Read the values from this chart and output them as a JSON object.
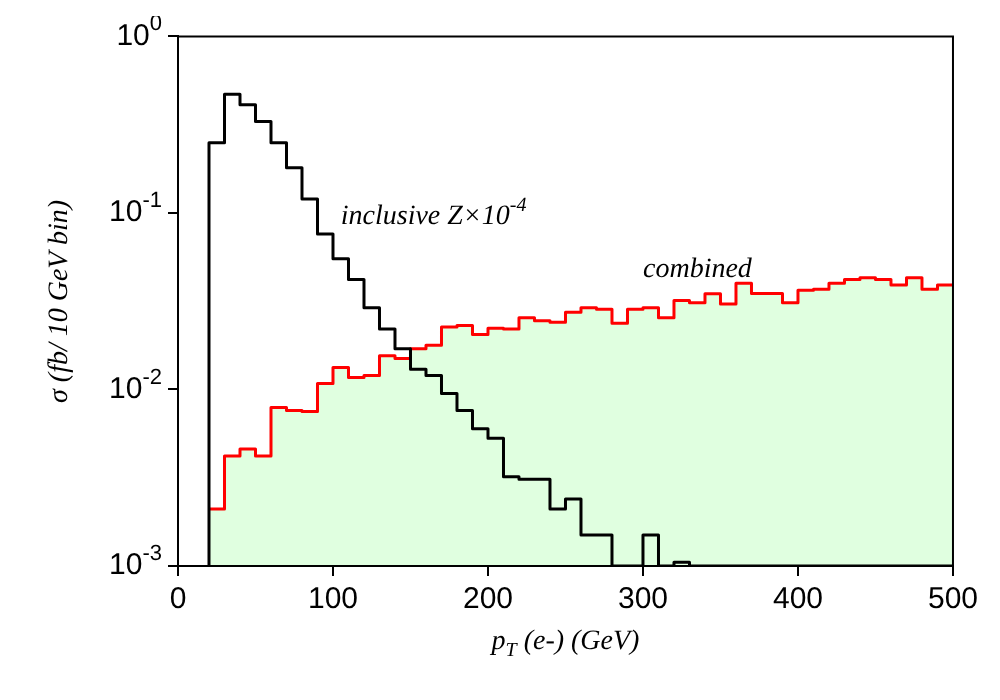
{
  "chart_data": {
    "type": "histogram",
    "xlabel": "p$_{T}$ (e-) (GeV)",
    "ylabel": "σ (fb/ 10 GeV bin)",
    "bins": [
      20,
      30,
      40,
      50,
      60,
      70,
      80,
      90,
      100,
      110,
      120,
      130,
      140,
      150,
      160,
      170,
      180,
      190,
      200,
      210,
      220,
      230,
      240,
      250,
      260,
      270,
      280,
      290,
      300,
      310,
      320,
      330,
      340,
      350,
      360,
      370,
      380,
      390,
      400,
      410,
      420,
      430,
      440,
      450,
      460,
      470,
      480,
      490,
      500
    ],
    "series": [
      {
        "name": "combined",
        "type": "area",
        "color": "#ff0000",
        "x": [
          20,
          30,
          30,
          40,
          40,
          50,
          50,
          60,
          60,
          70,
          70,
          80,
          80,
          90,
          90,
          100,
          100,
          110,
          110,
          120,
          120,
          130,
          130,
          140,
          140,
          150,
          150,
          160,
          160,
          170,
          170,
          180,
          180,
          190,
          190,
          200,
          200,
          210,
          210,
          220,
          220,
          230,
          230,
          240,
          240,
          250,
          250,
          260,
          260,
          270,
          270,
          280,
          280,
          290,
          290,
          300,
          300,
          310,
          310,
          320,
          320,
          330,
          330,
          340,
          340,
          350,
          350,
          360,
          360,
          370,
          370,
          380,
          380,
          390,
          390,
          400,
          400,
          410,
          410,
          420,
          420,
          430,
          430,
          440,
          440,
          450,
          450,
          460,
          460,
          470,
          470,
          480,
          480,
          490,
          490,
          500
        ],
        "values": [
          0.0021,
          0.0021,
          0.0042,
          0.0042,
          0.0046,
          0.0046,
          0.0042,
          0.0042,
          0.0079,
          0.0079,
          0.0076,
          0.0076,
          0.0075,
          0.0075,
          0.0108,
          0.0108,
          0.0133,
          0.0133,
          0.0117,
          0.0117,
          0.012,
          0.012,
          0.0155,
          0.0155,
          0.015,
          0.015,
          0.017,
          0.017,
          0.0178,
          0.0178,
          0.0226,
          0.0226,
          0.023,
          0.023,
          0.0205,
          0.0205,
          0.0222,
          0.0222,
          0.022,
          0.022,
          0.0255,
          0.0255,
          0.0245,
          0.0245,
          0.024,
          0.024,
          0.0274,
          0.0274,
          0.029,
          0.029,
          0.0285,
          0.0285,
          0.0237,
          0.0237,
          0.0285,
          0.0285,
          0.029,
          0.029,
          0.0255,
          0.0255,
          0.0319,
          0.0319,
          0.031,
          0.031,
          0.0349,
          0.0349,
          0.0305,
          0.0305,
          0.04,
          0.04,
          0.035,
          0.035,
          0.035,
          0.035,
          0.031,
          0.031,
          0.0365,
          0.0365,
          0.037,
          0.037,
          0.04,
          0.04,
          0.042,
          0.042,
          0.043,
          0.043,
          0.042,
          0.042,
          0.039,
          0.039,
          0.043,
          0.043,
          0.037,
          0.037,
          0.039,
          0.039
        ]
      },
      {
        "name": "inclusive Z×10$^{-4}$",
        "color": "#000000",
        "values": [
          0.25,
          0.47,
          0.41,
          0.33,
          0.25,
          0.18,
          0.12,
          0.076,
          0.055,
          0.042,
          0.029,
          0.022,
          0.017,
          0.013,
          0.012,
          0.0095,
          0.0076,
          0.006,
          0.0053,
          0.0032,
          0.0031,
          0.0031,
          0.0021,
          0.0024,
          0.0015,
          0.0015,
          null,
          null,
          0.0015,
          null,
          0.00105,
          null,
          null,
          null,
          null,
          null,
          null,
          null,
          null,
          null,
          null,
          null,
          null,
          null,
          null,
          null,
          null,
          null
        ]
      }
    ],
    "xlim": [
      0,
      500
    ],
    "xticks": [
      0,
      100,
      200,
      300,
      400,
      500
    ],
    "ylim": [
      0.001,
      1
    ],
    "yticks": [
      {
        "value": 0.001,
        "label": "10$^{-3}$"
      },
      {
        "value": 0.01,
        "label": "10$^{-2}$"
      },
      {
        "value": 0.1,
        "label": "10$^{-1}$"
      },
      {
        "value": 1,
        "label": "10$^{0}$"
      }
    ],
    "log": "y",
    "grid": false,
    "legend": false
  }
}
